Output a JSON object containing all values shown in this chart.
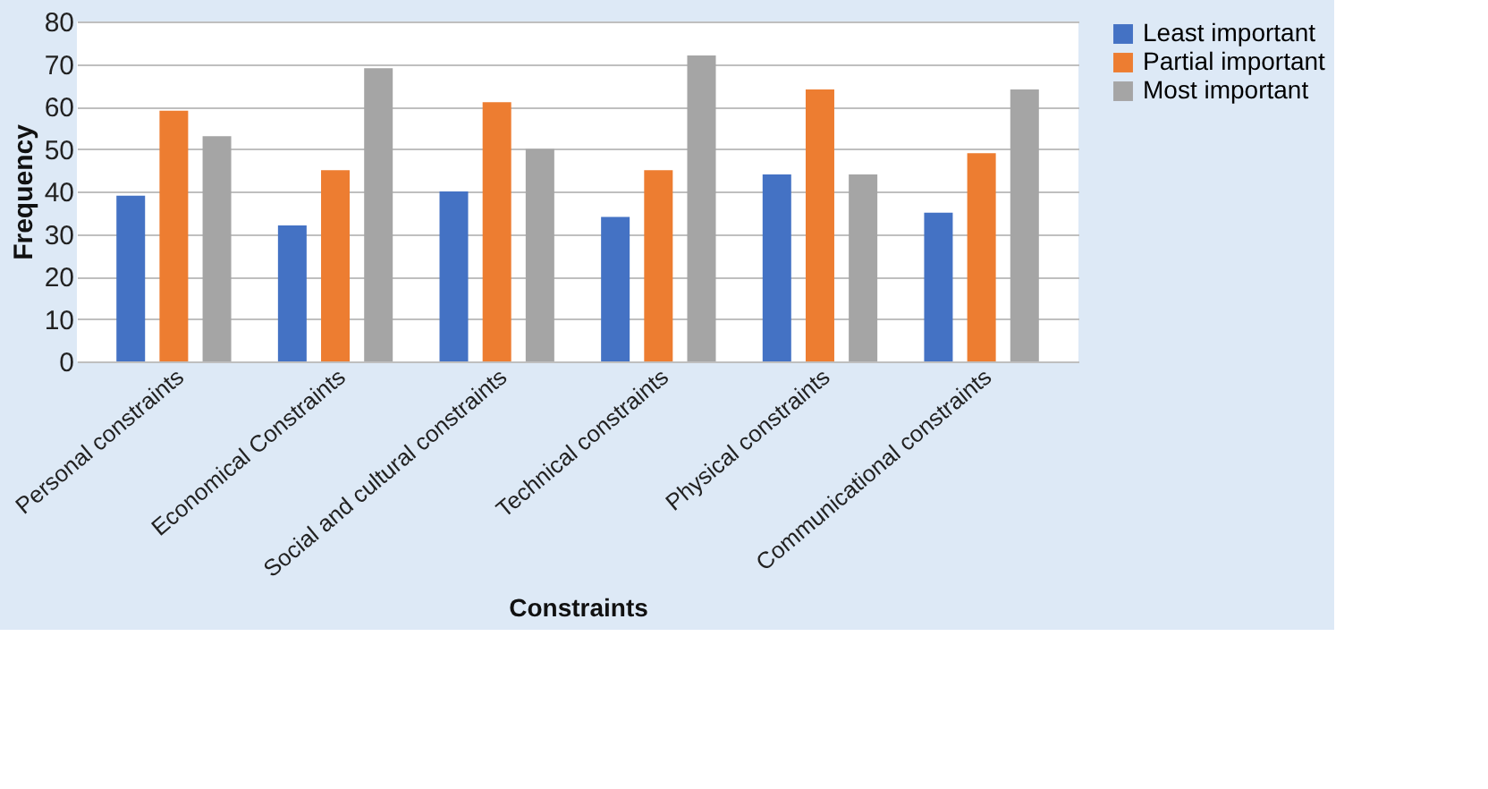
{
  "chart_data": {
    "type": "bar",
    "xlabel": "Constraints",
    "ylabel": "Frequency",
    "categories": [
      "Personal constraints",
      "Economical Constraints",
      "Social and cultural constraints",
      "Technical constraints",
      "Physical constraints",
      "Communicational constraints"
    ],
    "series": [
      {
        "name": "Least important",
        "color": "#4472c4",
        "values": [
          39,
          32,
          40,
          34,
          44,
          35
        ]
      },
      {
        "name": "Partial important",
        "color": "#ed7d31",
        "values": [
          59,
          45,
          61,
          45,
          64,
          49
        ]
      },
      {
        "name": "Most important",
        "color": "#a5a5a5",
        "values": [
          53,
          69,
          50,
          72,
          44,
          64
        ]
      }
    ],
    "ylim": [
      0,
      80
    ],
    "yticks": [
      0,
      10,
      20,
      30,
      40,
      50,
      60,
      70,
      80
    ],
    "grid": "y",
    "legend": "right"
  }
}
